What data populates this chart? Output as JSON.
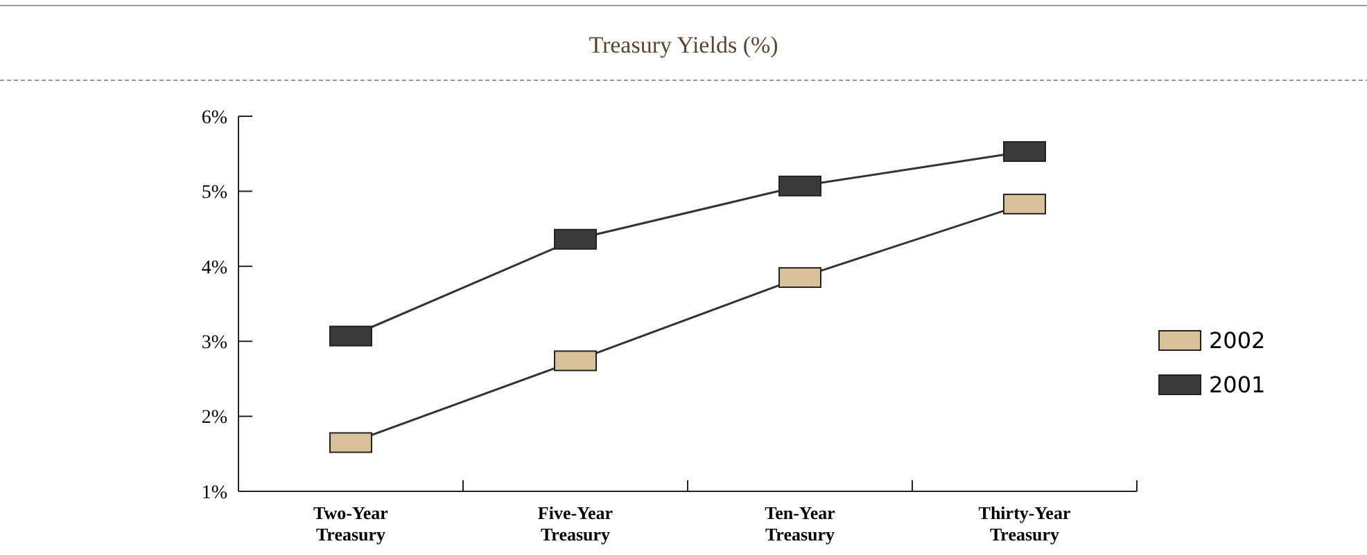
{
  "chart_data": {
    "type": "line",
    "title": "Treasury Yields (%)",
    "categories": [
      "Two-Year Treasury",
      "Five-Year Treasury",
      "Ten-Year Treasury",
      "Thirty-Year Treasury"
    ],
    "series": [
      {
        "name": "2002",
        "color": "#d9c29a",
        "values": [
          1.65,
          2.74,
          3.85,
          4.83
        ]
      },
      {
        "name": "2001",
        "color": "#3a3a3a",
        "values": [
          3.07,
          4.36,
          5.07,
          5.53
        ]
      }
    ],
    "ylim": [
      1,
      6
    ],
    "yticks": [
      {
        "value": 1,
        "label": "1%"
      },
      {
        "value": 2,
        "label": "2%"
      },
      {
        "value": 3,
        "label": "3%"
      },
      {
        "value": 4,
        "label": "4%"
      },
      {
        "value": 5,
        "label": "5%"
      },
      {
        "value": 6,
        "label": "6%"
      }
    ],
    "grid": false,
    "legend": "right",
    "marker": "square",
    "line_style": "solid"
  }
}
